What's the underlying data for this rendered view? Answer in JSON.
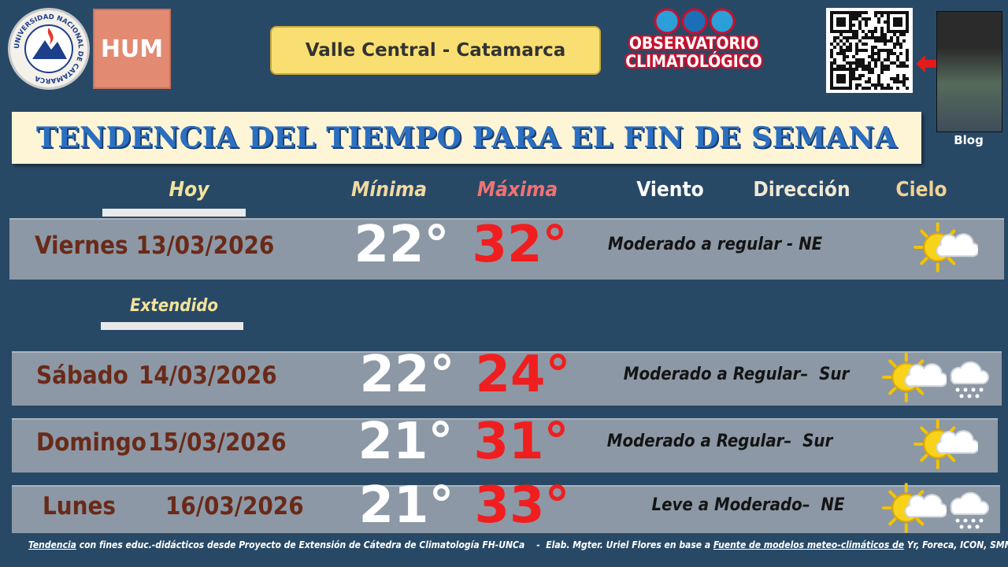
{
  "header": {
    "university": "UNIVERSIDAD NACIONAL DE CATAMARCA",
    "faculty": "HUM",
    "location": "Valle Central - Catamarca",
    "observatory": [
      "OBSERVATORIO",
      "CLIMATOLÓGICO"
    ],
    "blog": "Blog"
  },
  "title": "TENDENCIA DEL TIEMPO PARA EL FIN DE SEMANA",
  "columns": {
    "today": "Hoy",
    "min": "Mínima",
    "max": "Máxima",
    "wind": "Viento",
    "direction": "Dirección",
    "sky": "Cielo"
  },
  "extended_label": "Extendido",
  "rows": [
    {
      "day": "Viernes",
      "date": "13/03/2026",
      "min": "22°",
      "max": "32°",
      "wind": "Moderado a regular - NE"
    },
    {
      "day": "Sábado",
      "date": "14/03/2026",
      "min": "22°",
      "max": "24°",
      "wind": "Moderado a Regular–  Sur"
    },
    {
      "day": "Domingo",
      "date": "15/03/2026",
      "min": "21°",
      "max": "31°",
      "wind": "Moderado a Regular–  Sur"
    },
    {
      "day": "Lunes",
      "date": "16/03/2026",
      "min": "21°",
      "max": "33°",
      "wind": "Leve a Moderado–  NE"
    }
  ],
  "footer": {
    "lead": "Tendencia",
    "text": " con fines educ.-didácticos desde Proyecto de Extensión de Cátedra de Climatología FH-UNCa    -  Elab. Mgter. Uriel Flores en base a ",
    "link": "Fuente de modelos meteo-climáticos de",
    "sources": " Yr, Foreca, ICON, SMN"
  }
}
